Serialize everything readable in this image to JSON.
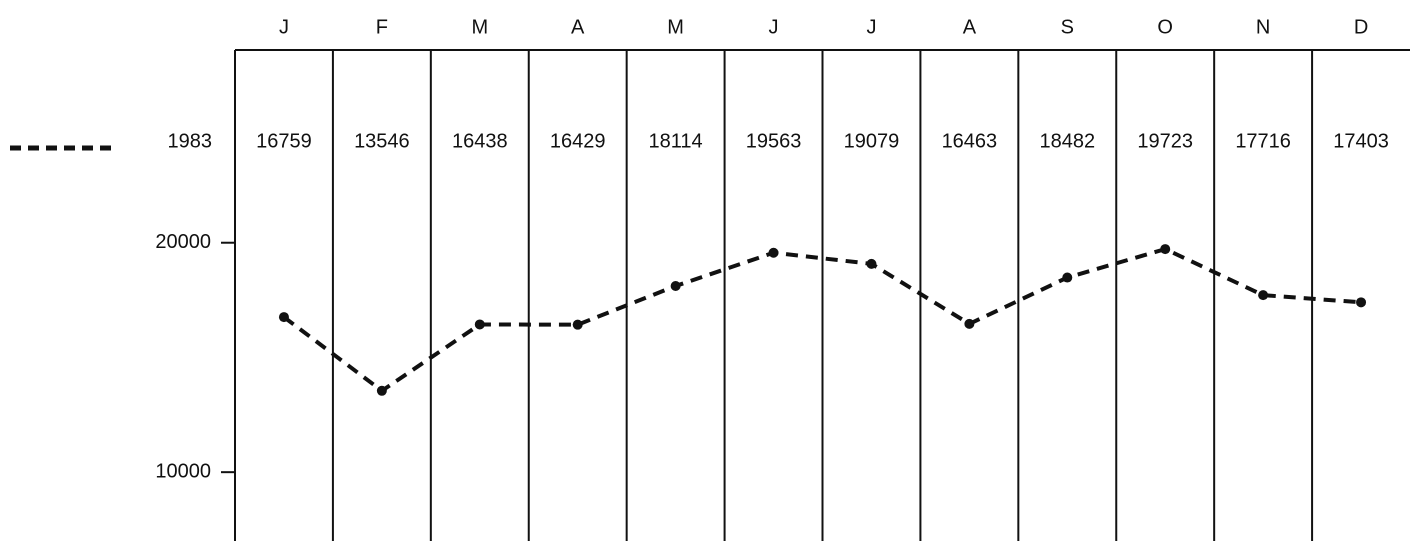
{
  "chart_data": {
    "type": "line",
    "categories": [
      "J",
      "F",
      "M",
      "A",
      "M",
      "J",
      "J",
      "A",
      "S",
      "O",
      "N",
      "D"
    ],
    "series": [
      {
        "name": "1983",
        "color": "#111111",
        "values": [
          16759,
          13546,
          16438,
          16429,
          18114,
          19563,
          19079,
          16463,
          18482,
          19723,
          17716,
          17403
        ]
      }
    ],
    "ylim": [
      7000,
      28400
    ],
    "yticks": [
      10000,
      20000
    ]
  }
}
